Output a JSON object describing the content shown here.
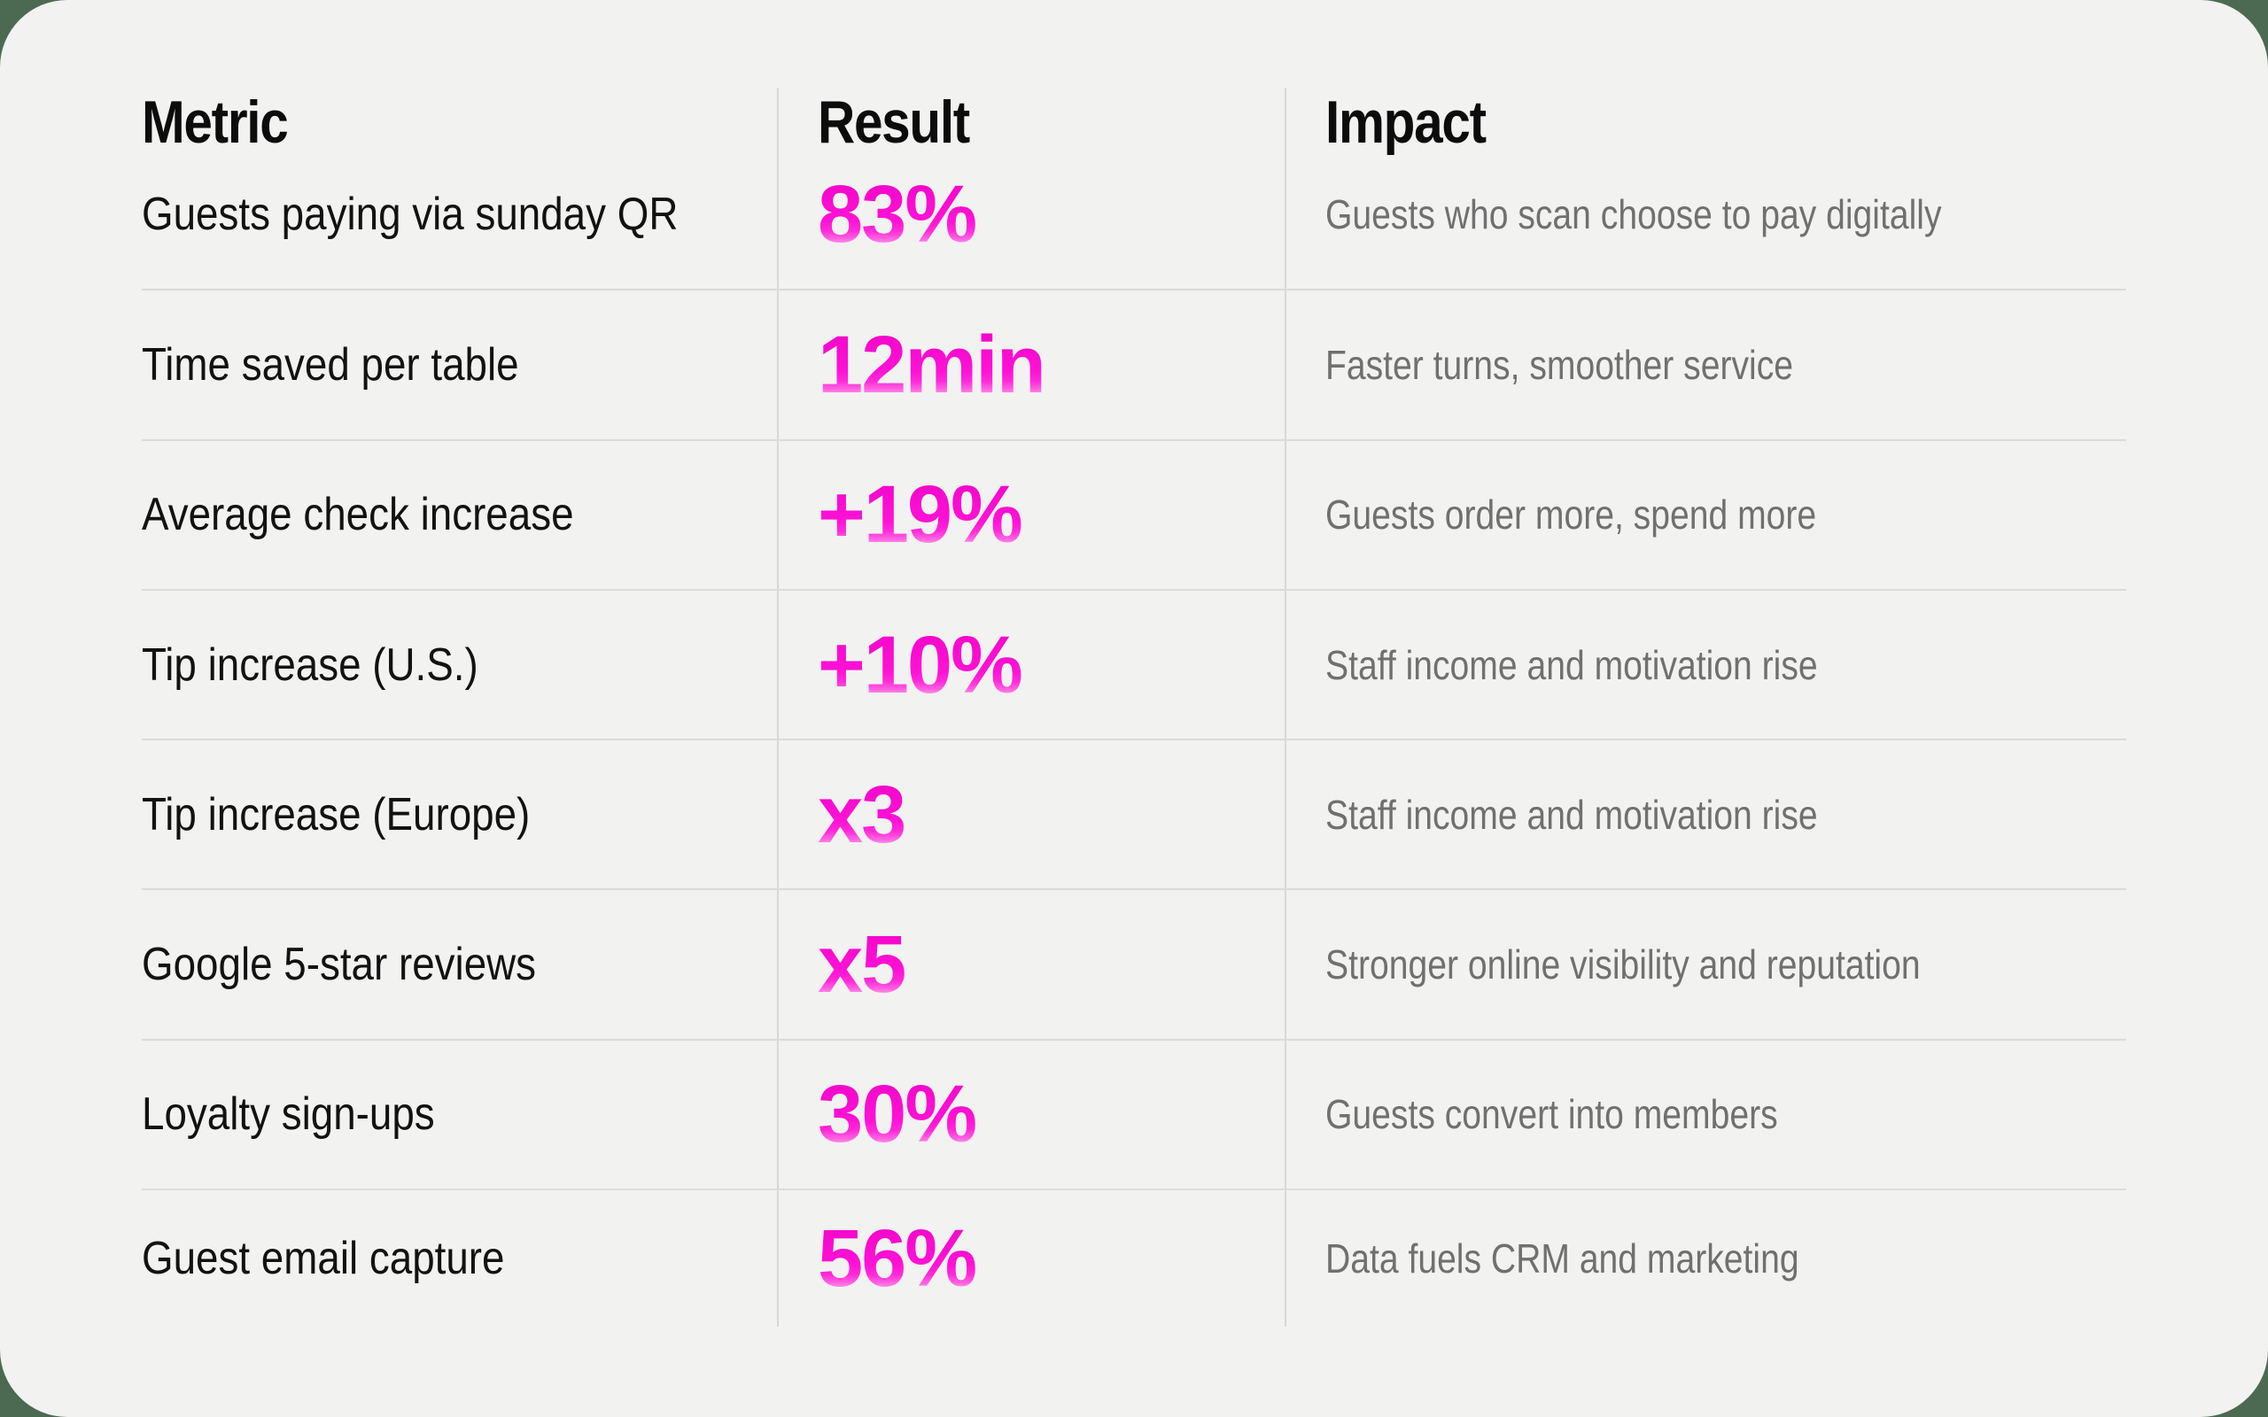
{
  "colors": {
    "background": "#4c6a52",
    "card": "#f2f2f1",
    "divider": "#d8d8d7",
    "accent": "#ff12d4",
    "metric_text": "#121212",
    "impact_text": "#707070"
  },
  "table": {
    "headers": {
      "metric": "Metric",
      "result": "Result",
      "impact": "Impact"
    },
    "rows": [
      {
        "metric": "Guests paying via sunday QR",
        "result": "83%",
        "impact": "Guests who scan choose to pay digitally"
      },
      {
        "metric": "Time saved per table",
        "result": "12min",
        "impact": "Faster turns, smoother service"
      },
      {
        "metric": "Average check increase",
        "result": "+19%",
        "impact": "Guests order more, spend more"
      },
      {
        "metric": "Tip increase (U.S.)",
        "result": "+10%",
        "impact": "Staff income and motivation rise"
      },
      {
        "metric": "Tip increase (Europe)",
        "result": "x3",
        "impact": "Staff income and motivation rise"
      },
      {
        "metric": "Google 5-star reviews",
        "result": "x5",
        "impact": "Stronger online visibility and reputation"
      },
      {
        "metric": "Loyalty sign-ups",
        "result": "30%",
        "impact": "Guests convert into members"
      },
      {
        "metric": "Guest email capture",
        "result": "56%",
        "impact": "Data fuels CRM and marketing"
      }
    ]
  }
}
